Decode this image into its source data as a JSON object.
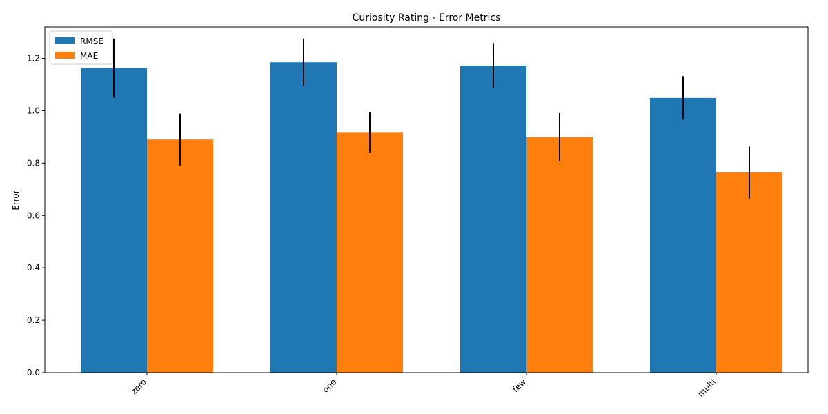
{
  "chart_data": {
    "type": "bar",
    "title": "Curiosity Rating - Error Metrics",
    "xlabel": "",
    "ylabel": "Error",
    "categories": [
      "zero",
      "one",
      "few",
      "multi"
    ],
    "series": [
      {
        "name": "RMSE",
        "color": "#1f77b4",
        "values": [
          1.163,
          1.185,
          1.172,
          1.049
        ],
        "errors": [
          0.113,
          0.091,
          0.084,
          0.083
        ]
      },
      {
        "name": "MAE",
        "color": "#ff7f0e",
        "values": [
          0.89,
          0.916,
          0.899,
          0.764
        ],
        "errors": [
          0.099,
          0.078,
          0.092,
          0.099
        ]
      }
    ],
    "ylim": [
      0,
      1.32
    ],
    "yticks": [
      "0.0",
      "0.2",
      "0.4",
      "0.6",
      "0.8",
      "1.0",
      "1.2"
    ],
    "grid": false,
    "legend_position": "top-left"
  }
}
